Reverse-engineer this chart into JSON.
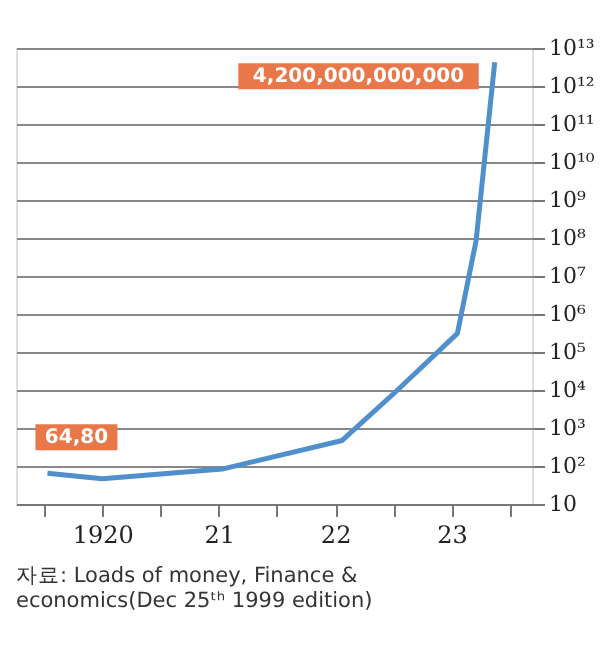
{
  "chart_data": {
    "type": "line",
    "x": [
      1919.53,
      1920.0,
      1921.03,
      1922.06,
      1922.52,
      1923.05,
      1923.21,
      1923.37
    ],
    "series": [
      {
        "color": "#4f8fcc",
        "values": [
          64.8,
          46,
          83,
          470,
          9000,
          310000,
          85000000,
          4200000000000
        ]
      }
    ],
    "xlim": [
      1919.26,
      1923.69
    ],
    "xticks": [
      {
        "value": 1919.5,
        "label": null
      },
      {
        "value": 1920,
        "label": "1920"
      },
      {
        "value": 1920.5,
        "label": null
      },
      {
        "value": 1921,
        "label": "21"
      },
      {
        "value": 1921.5,
        "label": null
      },
      {
        "value": 1922,
        "label": "22"
      },
      {
        "value": 1922.5,
        "label": null
      },
      {
        "value": 1923,
        "label": "23"
      },
      {
        "value": 1923.5,
        "label": null
      }
    ],
    "ylim": [
      10,
      10000000000000
    ],
    "log": true,
    "yticks": [
      {
        "value": 10,
        "label": "10"
      },
      {
        "value": 100,
        "label": "10²"
      },
      {
        "value": 1000,
        "label": "10³"
      },
      {
        "value": 10000,
        "label": "10⁴"
      },
      {
        "value": 100000,
        "label": "10⁵"
      },
      {
        "value": 1000000,
        "label": "10⁶"
      },
      {
        "value": 10000000,
        "label": "10⁷"
      },
      {
        "value": 100000000,
        "label": "10⁸"
      },
      {
        "value": 1000000000,
        "label": "10⁹"
      },
      {
        "value": 10000000000,
        "label": "10¹⁰"
      },
      {
        "value": 100000000000,
        "label": "10¹¹"
      },
      {
        "value": 1000000000000,
        "label": "10¹²"
      },
      {
        "value": 10000000000000,
        "label": "10¹³"
      }
    ],
    "grid": "y",
    "annotations": [
      {
        "text": "64,80",
        "x": 1919.53,
        "y": 64.8
      },
      {
        "text": "4,200,000,000,000",
        "x": 1923.37,
        "y": 4200000000000
      },
      "자료: Loads of money, Finance & economics(Dec 25ᵗʰ 1999 edition)"
    ]
  }
}
